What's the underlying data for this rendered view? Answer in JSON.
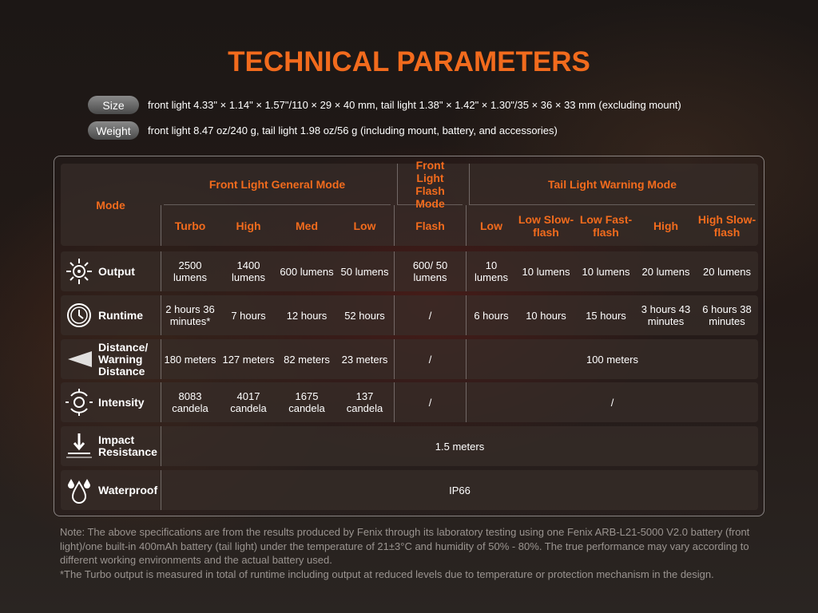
{
  "title": "TECHNICAL PARAMETERS",
  "specs": [
    {
      "label": "Size",
      "text": "front light 4.33\" × 1.14\" × 1.57\"/110 × 29 × 40 mm, tail light 1.38\" × 1.42\" × 1.30\"/35 × 36 × 33 mm (excluding mount)"
    },
    {
      "label": "Weight",
      "text": "front light 8.47 oz/240 g, tail light 1.98 oz/56 g (including mount, battery, and accessories)"
    }
  ],
  "table": {
    "mode_label": "Mode",
    "groups": [
      "Front Light General Mode",
      "Front Light Flash Mode",
      "Tail Light Warning Mode"
    ],
    "modes": [
      "Turbo",
      "High",
      "Med",
      "Low",
      "Flash",
      "Low",
      "Low Slow-flash",
      "Low Fast-flash",
      "High",
      "High Slow-flash"
    ],
    "rows": [
      {
        "label": "Output",
        "cells": [
          "2500 lumens",
          "1400 lumens",
          "600 lumens",
          "50 lumens",
          "600/ 50 lumens",
          "10 lumens",
          "10 lumens",
          "10 lumens",
          "20 lumens",
          "20 lumens"
        ]
      },
      {
        "label": "Runtime",
        "cells": [
          "2 hours 36 minutes*",
          "7 hours",
          "12 hours",
          "52 hours",
          "/",
          "6 hours",
          "10 hours",
          "15 hours",
          "3 hours 43 minutes",
          "6 hours 38 minutes"
        ]
      },
      {
        "label": "Distance/ Warning Distance",
        "cells": [
          "180 meters",
          "127 meters",
          "82 meters",
          "23 meters",
          "/",
          "100 meters"
        ]
      },
      {
        "label": "Intensity",
        "cells": [
          "8083 candela",
          "4017 candela",
          "1675 candela",
          "137 candela",
          "/",
          "/"
        ]
      },
      {
        "label": "Impact Resistance",
        "cells": [
          "1.5 meters"
        ]
      },
      {
        "label": "Waterproof",
        "cells": [
          "IP66"
        ]
      }
    ]
  },
  "notes": [
    "Note: The above specifications are from the results produced by Fenix through its laboratory testing using one Fenix ARB-L21-5000 V2.0 battery (front light)/one built-in 400mAh battery (tail light) under the temperature of 21±3°C and humidity of 50% - 80%. The true performance may vary according to different working environments and the actual battery used.",
    "*The Turbo output is measured in total of runtime including output at reduced levels due to temperature or protection mechanism in the design."
  ]
}
